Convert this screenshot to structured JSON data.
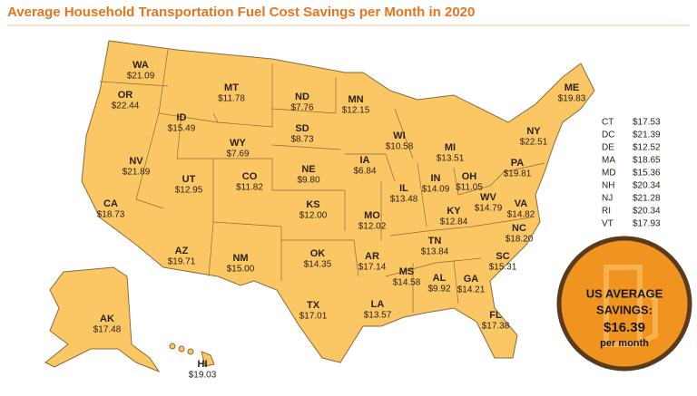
{
  "title": "Average Household Transportation Fuel Cost Savings per Month in 2020",
  "states": [
    {
      "abbr": "WA",
      "value": "$21.09"
    },
    {
      "abbr": "OR",
      "value": "$22.44"
    },
    {
      "abbr": "ID",
      "value": "$15.49"
    },
    {
      "abbr": "MT",
      "value": "$11.78"
    },
    {
      "abbr": "WY",
      "value": "$7.69"
    },
    {
      "abbr": "ND",
      "value": "$7.76"
    },
    {
      "abbr": "SD",
      "value": "$8.73"
    },
    {
      "abbr": "MN",
      "value": "$12.15"
    },
    {
      "abbr": "WI",
      "value": "$10.58"
    },
    {
      "abbr": "MI",
      "value": "$13.51"
    },
    {
      "abbr": "NV",
      "value": "$21.89"
    },
    {
      "abbr": "UT",
      "value": "$12.95"
    },
    {
      "abbr": "CO",
      "value": "$11.82"
    },
    {
      "abbr": "NE",
      "value": "$9.80"
    },
    {
      "abbr": "IA",
      "value": "$6.84"
    },
    {
      "abbr": "IL",
      "value": "$13.48"
    },
    {
      "abbr": "IN",
      "value": "$14.09"
    },
    {
      "abbr": "OH",
      "value": "$11.05"
    },
    {
      "abbr": "PA",
      "value": "$19.81"
    },
    {
      "abbr": "NY",
      "value": "$22.51"
    },
    {
      "abbr": "ME",
      "value": "$19.83"
    },
    {
      "abbr": "CA",
      "value": "$18.73"
    },
    {
      "abbr": "KS",
      "value": "$12.00"
    },
    {
      "abbr": "MO",
      "value": "$12.02"
    },
    {
      "abbr": "KY",
      "value": "$12.84"
    },
    {
      "abbr": "WV",
      "value": "$14.79"
    },
    {
      "abbr": "VA",
      "value": "$14.82"
    },
    {
      "abbr": "NC",
      "value": "$18.20"
    },
    {
      "abbr": "TN",
      "value": "$13.84"
    },
    {
      "abbr": "AR",
      "value": "$17.14"
    },
    {
      "abbr": "OK",
      "value": "$14.35"
    },
    {
      "abbr": "AZ",
      "value": "$19.71"
    },
    {
      "abbr": "NM",
      "value": "$15.00"
    },
    {
      "abbr": "TX",
      "value": "$17.01"
    },
    {
      "abbr": "LA",
      "value": "$13.57"
    },
    {
      "abbr": "MS",
      "value": "$14.58"
    },
    {
      "abbr": "AL",
      "value": "$9.92"
    },
    {
      "abbr": "GA",
      "value": "$14.21"
    },
    {
      "abbr": "SC",
      "value": "$15.31"
    },
    {
      "abbr": "FL",
      "value": "$17.38"
    },
    {
      "abbr": "AK",
      "value": "$17.48"
    },
    {
      "abbr": "HI",
      "value": "$19.03"
    }
  ],
  "small_states": [
    {
      "abbr": "CT",
      "value": "$17.53"
    },
    {
      "abbr": "DC",
      "value": "$21.39"
    },
    {
      "abbr": "DE",
      "value": "$12.52"
    },
    {
      "abbr": "MA",
      "value": "$18.65"
    },
    {
      "abbr": "MD",
      "value": "$15.36"
    },
    {
      "abbr": "NH",
      "value": "$20.34"
    },
    {
      "abbr": "NJ",
      "value": "$21.28"
    },
    {
      "abbr": "RI",
      "value": "$20.34"
    },
    {
      "abbr": "VT",
      "value": "$17.93"
    }
  ],
  "badge": {
    "line1": "US AVERAGE",
    "line2": "SAVINGS:",
    "amount": "$16.39",
    "unit": "per month"
  }
}
